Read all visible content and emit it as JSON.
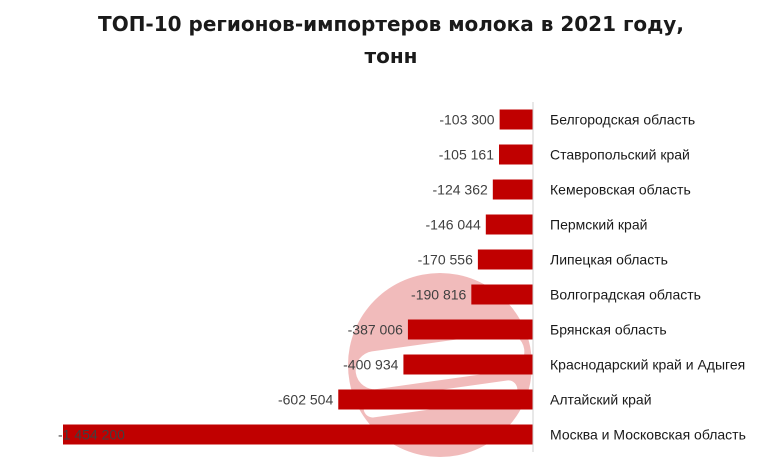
{
  "chart_data": {
    "type": "bar",
    "orientation": "horizontal",
    "title_line1": "ТОП-10 регионов-импортеров молока в 2021 году,",
    "title_line2": "тонн",
    "categories": [
      "Белгородская область",
      "Ставропольский край",
      "Кемеровская область",
      "Пермский край",
      "Липецкая область",
      "Волгоградская область",
      "Брянская область",
      "Краснодарский край и Адыгея",
      "Алтайский край",
      "Москва и Московская область"
    ],
    "values": [
      -103300,
      -105161,
      -124362,
      -146044,
      -170556,
      -190816,
      -387006,
      -400934,
      -602504,
      -1454200
    ],
    "value_labels": [
      "-103 300",
      "-105 161",
      "-124 362",
      "-146 044",
      "-170 556",
      "-190 816",
      "-387 006",
      "-400 934",
      "-602 504",
      "-1 454 200"
    ],
    "bar_color": "#c00000",
    "grid": false,
    "legend": "none"
  }
}
